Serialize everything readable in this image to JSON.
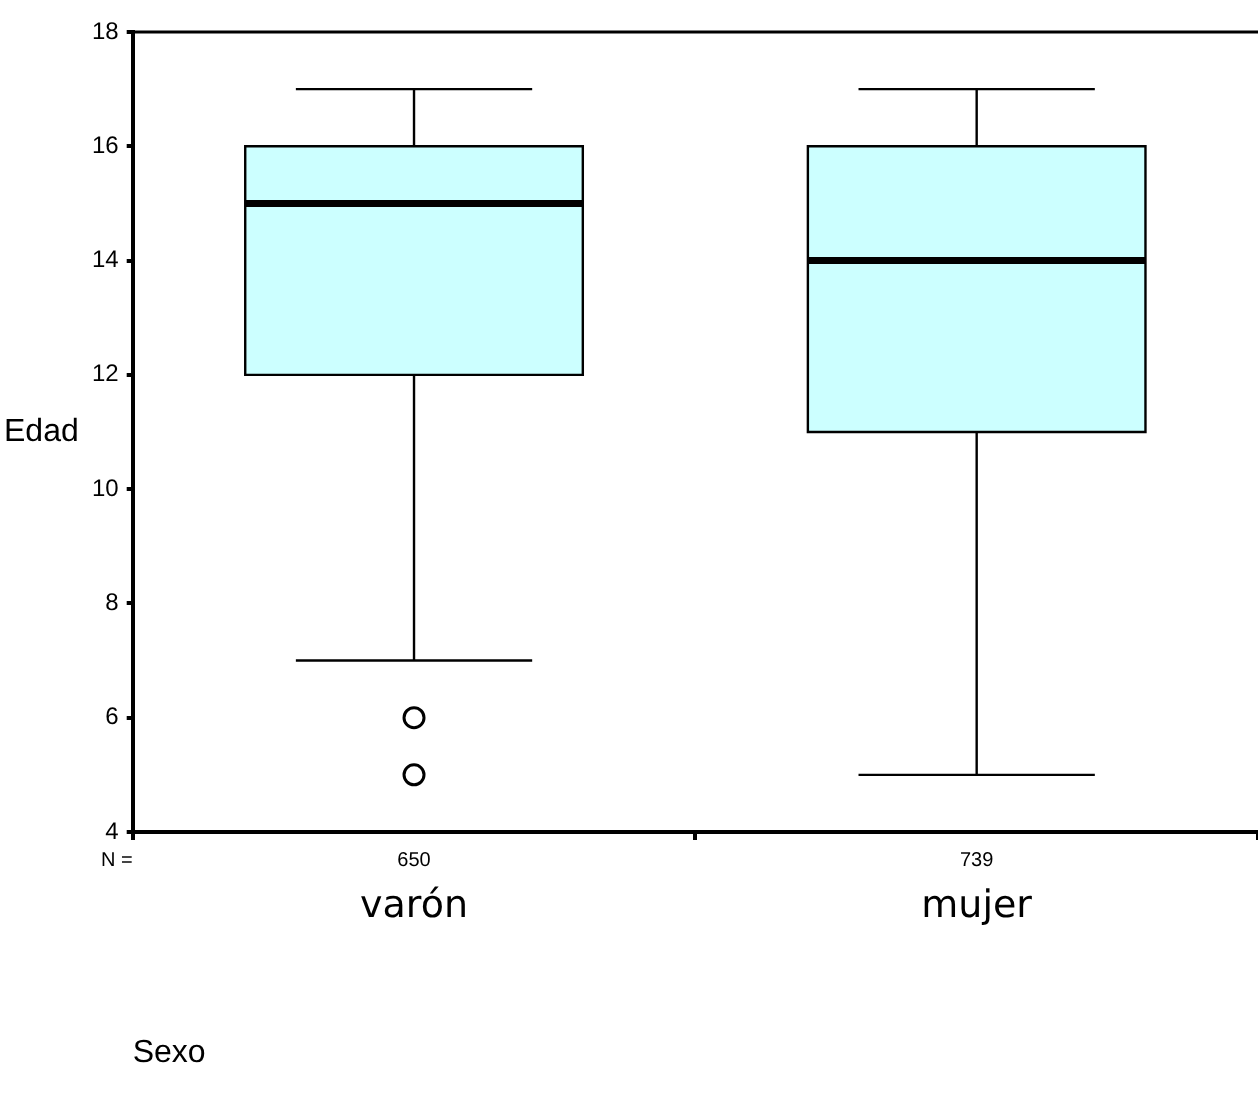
{
  "chart_data": {
    "type": "box",
    "xlabel": "Sexo",
    "ylabel": "Edad",
    "categories": [
      "varón",
      "mujer"
    ],
    "color": "#ccffff",
    "boxes": [
      {
        "low": 7,
        "q1": 12,
        "median": 15,
        "q3": 16,
        "high": 17,
        "outliers": [
          6,
          5
        ]
      },
      {
        "low": 5,
        "q1": 11,
        "median": 14,
        "q3": 16,
        "high": 17
      }
    ],
    "ylim": [
      4,
      18
    ],
    "yticks": [
      4,
      6,
      8,
      10,
      12,
      14,
      16,
      18
    ],
    "grid": false,
    "legend": false,
    "annotations": [
      "N =",
      "650",
      "739"
    ]
  }
}
